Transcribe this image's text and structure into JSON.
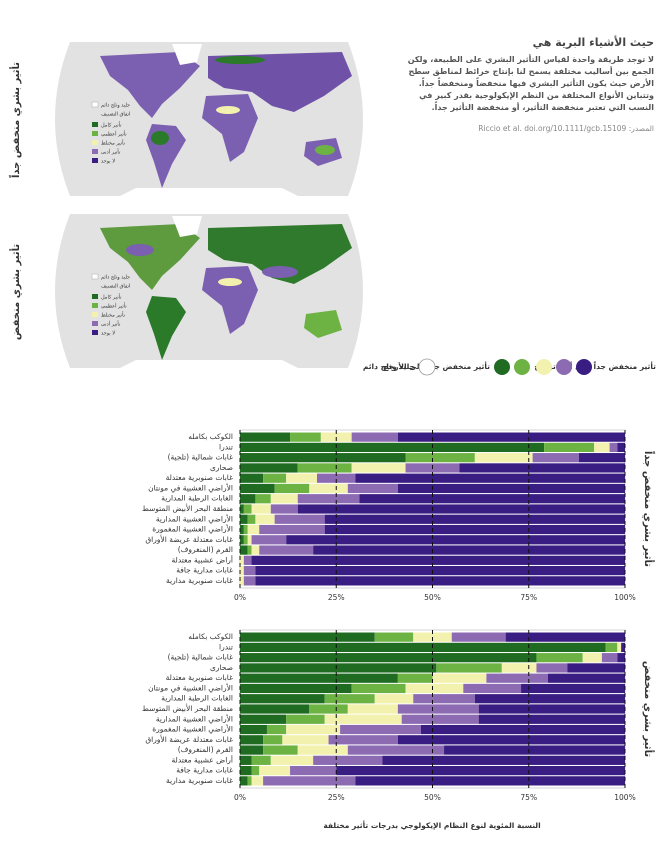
{
  "header": {
    "title": "حيث الأشياء البرية هي",
    "body": "لا توجد طريقة واحدة لقياس التأثير البشري على الطبيعة، ولكن الجمع بين أساليب مختلفة يسمح لنا بإنتاج خرائط لمناطق سطح الأرض حيث يكون التأثير البشري فيها منخفضاً ومنخفضاً جداً. وتتباين الأنواع المختلفة من النظم الإيكولوجية بقدر كبير في النسب التي تعتبر منخفضة التأثير، أو منخفضة التأثير جداً.",
    "source": "المصدر: Riccio et al. doi.org/10.1111/gcb.15109"
  },
  "maps": [
    {
      "label": "تأثير بشري منخفض جداً"
    },
    {
      "label": "تأثير بشري منخفض"
    }
  ],
  "map_legend": {
    "ice": "جليد وثلج دائم",
    "ice_color": "#ffffff",
    "heading": "اتفاق التصنيف",
    "items": [
      "تأثير كامل",
      "تأثير أعظمي",
      "تأثير مختلط",
      "تأثير أدنى",
      "لا يوجد"
    ],
    "colors": [
      "#1f6b22",
      "#6db343",
      "#f3f1ae",
      "#8d6bb3",
      "#3a1d83"
    ]
  },
  "legend": {
    "ice": "جليد وثلج دائم",
    "likely": "تأثير منخفض جداً على الأرجح",
    "unlikely": "تأثير منخفض جداً على أقل ترجيح"
  },
  "chart_data": [
    {
      "type": "bar",
      "orientation": "horizontal",
      "stacked": true,
      "side_label": "تأثير بشري منخفض جداً",
      "categories": [
        "الكوكب بكامله",
        "تندرا",
        "غابات شمالية (تلجية)",
        "صحارى",
        "غابات صنوبرية معتدلة",
        "الأراضي العشبية في مونتان",
        "الغابات الرطبة المدارية",
        "منطقة البحر الأبيض المتوسط",
        "الأراضي العشبية المدارية",
        "الأراضي العشبية المغمورة",
        "غابات معتدلة عريضة الأوراق",
        "القرم (المنغروف)",
        "أراض عشبية معتدلة",
        "غابات مدارية جافة",
        "غابات صنوبرية مدارية"
      ],
      "series": [
        {
          "color": "#1f6b22",
          "values": [
            13,
            79,
            43,
            15,
            6,
            9,
            4,
            1,
            2,
            1,
            1,
            2,
            0,
            0,
            0
          ]
        },
        {
          "color": "#6db343",
          "values": [
            8,
            13,
            18,
            14,
            6,
            9,
            4,
            2,
            2,
            1,
            1,
            1,
            0,
            0,
            0
          ]
        },
        {
          "color": "#f3f1ae",
          "values": [
            8,
            4,
            15,
            14,
            8,
            10,
            7,
            5,
            5,
            3,
            1,
            2,
            1,
            1,
            1
          ]
        },
        {
          "color": "#8d6bb3",
          "values": [
            12,
            2,
            12,
            14,
            10,
            13,
            16,
            7,
            13,
            17,
            9,
            14,
            2,
            3,
            3
          ]
        },
        {
          "color": "#3a1d83",
          "values": [
            59,
            2,
            12,
            43,
            70,
            59,
            69,
            85,
            78,
            78,
            88,
            81,
            97,
            96,
            96
          ]
        }
      ],
      "xlim": [
        0,
        100
      ],
      "xticks": [
        {
          "value": 0,
          "label": "0%"
        },
        {
          "value": 25,
          "label": "25%"
        },
        {
          "value": 50,
          "label": "50%"
        },
        {
          "value": 75,
          "label": "75%"
        },
        {
          "value": 100,
          "label": "100%"
        }
      ],
      "grid": true
    },
    {
      "type": "bar",
      "orientation": "horizontal",
      "stacked": true,
      "side_label": "تأثير بشري منخفض",
      "xlabel": "النسبة المئوية لنوع النظام الإيكولوجي بدرجات تأثير مختلفة",
      "categories": [
        "الكوكب بكامله",
        "تندرا",
        "غابات شمالية (تلجية)",
        "صحارى",
        "غابات صنوبرية معتدلة",
        "الأراضي العشبية في مونتان",
        "الغابات الرطبة المدارية",
        "منطقة البحر الأبيض المتوسط",
        "الأراضي العشبية المدارية",
        "الأراضي العشبية المغمورة",
        "غابات معتدلة عريضة الأوراق",
        "القرم (المنغروف)",
        "أراض عشبية معتدلة",
        "غابات مدارية جافة",
        "غابات صنوبرية مدارية"
      ],
      "series": [
        {
          "color": "#1f6b22",
          "values": [
            35,
            95,
            77,
            51,
            41,
            29,
            22,
            18,
            12,
            7,
            6,
            6,
            3,
            3,
            2
          ]
        },
        {
          "color": "#6db343",
          "values": [
            10,
            3,
            12,
            17,
            9,
            14,
            13,
            10,
            10,
            5,
            5,
            9,
            5,
            2,
            1
          ]
        },
        {
          "color": "#f3f1ae",
          "values": [
            10,
            1,
            5,
            9,
            14,
            15,
            10,
            13,
            20,
            14,
            12,
            13,
            11,
            8,
            3
          ]
        },
        {
          "color": "#8d6bb3",
          "values": [
            14,
            0,
            4,
            8,
            16,
            15,
            16,
            21,
            20,
            21,
            18,
            25,
            18,
            12,
            24
          ]
        },
        {
          "color": "#3a1d83",
          "values": [
            31,
            1,
            2,
            15,
            20,
            27,
            39,
            38,
            38,
            53,
            59,
            47,
            63,
            75,
            70
          ]
        }
      ],
      "xlim": [
        0,
        100
      ],
      "xticks": [
        {
          "value": 0,
          "label": "0%"
        },
        {
          "value": 25,
          "label": "25%"
        },
        {
          "value": 50,
          "label": "50%"
        },
        {
          "value": 75,
          "label": "75%"
        },
        {
          "value": 100,
          "label": "100%"
        }
      ],
      "grid": true
    }
  ]
}
